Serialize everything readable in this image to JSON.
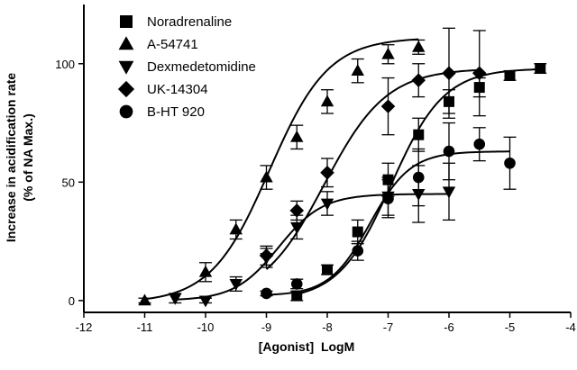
{
  "chart_data": {
    "type": "scatter",
    "title": "",
    "xlabel": "[Agonist]  LogM",
    "ylabel_lines": [
      "Increase in acidification rate",
      "(% of NA Max.)"
    ],
    "xlim": [
      -12,
      -4
    ],
    "ylim": [
      -5,
      125
    ],
    "x_ticks": [
      -12,
      -11,
      -10,
      -9,
      -8,
      -7,
      -6,
      -5,
      -4
    ],
    "y_ticks": [
      0,
      50,
      100
    ],
    "grid": false,
    "legend_position": "top-left",
    "series": [
      {
        "name": "Noradrenaline",
        "marker": "square",
        "points": [
          {
            "x": -8.5,
            "y": 2,
            "err": 2
          },
          {
            "x": -8.0,
            "y": 13,
            "err": 2
          },
          {
            "x": -7.5,
            "y": 29,
            "err": 5
          },
          {
            "x": -7.0,
            "y": 51,
            "err": 7
          },
          {
            "x": -6.5,
            "y": 70,
            "err": 7
          },
          {
            "x": -6.0,
            "y": 84,
            "err": 5
          },
          {
            "x": -5.5,
            "y": 90,
            "err": 4
          },
          {
            "x": -5.0,
            "y": 95,
            "err": 2
          },
          {
            "x": -4.5,
            "y": 98,
            "err": 2
          }
        ],
        "fit": {
          "bottom": 0,
          "top": 98,
          "logEC50": -6.95,
          "hill": 1.0
        }
      },
      {
        "name": "A-54741",
        "marker": "triangle-up",
        "points": [
          {
            "x": -11.0,
            "y": 0,
            "err": 1
          },
          {
            "x": -10.0,
            "y": 12,
            "err": 4
          },
          {
            "x": -9.5,
            "y": 30,
            "err": 4
          },
          {
            "x": -9.0,
            "y": 52,
            "err": 5
          },
          {
            "x": -8.5,
            "y": 69,
            "err": 5
          },
          {
            "x": -8.0,
            "y": 84,
            "err": 5
          },
          {
            "x": -7.5,
            "y": 97,
            "err": 5
          },
          {
            "x": -7.0,
            "y": 104,
            "err": 4
          },
          {
            "x": -6.5,
            "y": 107,
            "err": 3
          }
        ],
        "fit": {
          "bottom": -1,
          "top": 111,
          "logEC50": -8.95,
          "hill": 0.9
        }
      },
      {
        "name": "Dexmedetomidine",
        "marker": "triangle-down",
        "points": [
          {
            "x": -10.5,
            "y": 1,
            "err": 2
          },
          {
            "x": -10.0,
            "y": 0,
            "err": 1
          },
          {
            "x": -9.5,
            "y": 7,
            "err": 3
          },
          {
            "x": -9.0,
            "y": 18,
            "err": 4
          },
          {
            "x": -8.5,
            "y": 31,
            "err": 5
          },
          {
            "x": -8.0,
            "y": 41,
            "err": 5
          },
          {
            "x": -7.0,
            "y": 44,
            "err": 8
          },
          {
            "x": -6.5,
            "y": 45,
            "err": 12
          },
          {
            "x": -6.0,
            "y": 46,
            "err": 12
          }
        ],
        "fit": {
          "bottom": 0,
          "top": 45,
          "logEC50": -8.8,
          "hill": 1.2
        }
      },
      {
        "name": "UK-14304",
        "marker": "diamond",
        "points": [
          {
            "x": -9.0,
            "y": 19,
            "err": 4
          },
          {
            "x": -8.5,
            "y": 38,
            "err": 4
          },
          {
            "x": -8.0,
            "y": 54,
            "err": 6
          },
          {
            "x": -7.0,
            "y": 82,
            "err": 12
          },
          {
            "x": -6.5,
            "y": 93,
            "err": 7
          },
          {
            "x": -6.0,
            "y": 96,
            "err": 19
          },
          {
            "x": -5.5,
            "y": 96,
            "err": 18
          }
        ],
        "fit": {
          "bottom": 0,
          "top": 98,
          "logEC50": -8.05,
          "hill": 0.85
        }
      },
      {
        "name": "B-HT 920",
        "marker": "circle",
        "points": [
          {
            "x": -9.0,
            "y": 3,
            "err": 1
          },
          {
            "x": -8.5,
            "y": 7,
            "err": 2
          },
          {
            "x": -7.5,
            "y": 21,
            "err": 4
          },
          {
            "x": -7.0,
            "y": 43,
            "err": 8
          },
          {
            "x": -6.5,
            "y": 52,
            "err": 12
          },
          {
            "x": -6.0,
            "y": 63,
            "err": 12
          },
          {
            "x": -5.5,
            "y": 66,
            "err": 7
          },
          {
            "x": -5.0,
            "y": 58,
            "err": 11
          }
        ],
        "fit": {
          "bottom": 2,
          "top": 63,
          "logEC50": -7.3,
          "hill": 1.3
        }
      }
    ]
  }
}
